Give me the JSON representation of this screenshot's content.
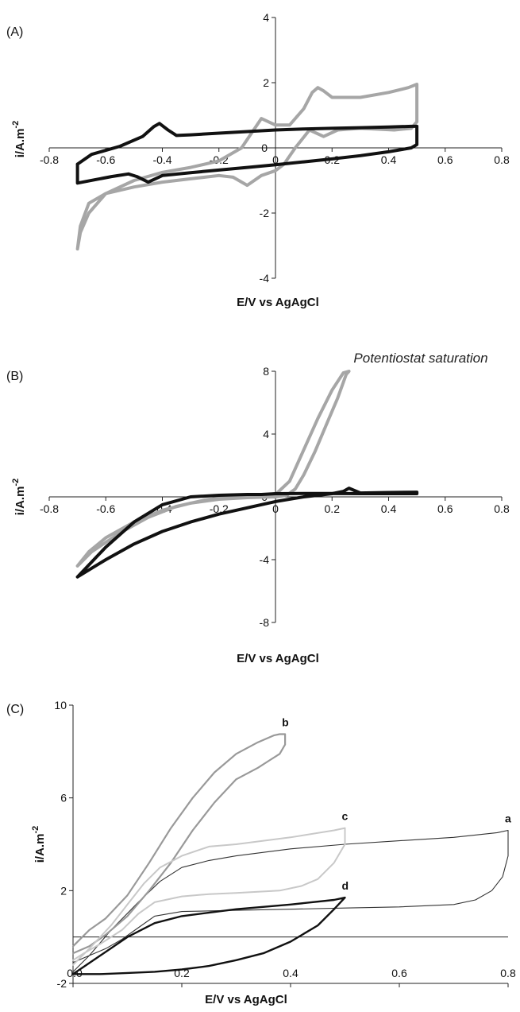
{
  "chart_data": [
    {
      "panel": "(A)",
      "type": "line",
      "xlabel": "E/V vs AgAgCl",
      "ylabel_main": "i/A.m",
      "ylabel_sup": "-2",
      "xlim": [
        -0.8,
        0.8
      ],
      "ylim": [
        -4,
        4
      ],
      "xticks": [
        -0.8,
        -0.6,
        -0.4,
        -0.2,
        0,
        0.2,
        0.4,
        0.6,
        0.8
      ],
      "xtick_labels": [
        "-0.8",
        "-0.6",
        "-0.4",
        "-0.2",
        "0",
        "0.2",
        "0.4",
        "0.6",
        "0.8"
      ],
      "yticks": [
        -4,
        -2,
        0,
        2,
        4
      ],
      "ytick_labels": [
        "-4",
        "-2",
        "0",
        "2",
        "4"
      ],
      "grid": false,
      "series": [
        {
          "color": "#a6a6a6",
          "x": [
            -0.7,
            -0.69,
            -0.66,
            -0.6,
            -0.5,
            -0.4,
            -0.3,
            -0.2,
            -0.12,
            -0.05,
            0.0,
            0.05,
            0.1,
            0.13,
            0.15,
            0.17,
            0.2,
            0.3,
            0.4,
            0.47,
            0.5,
            0.5,
            0.48,
            0.42,
            0.3,
            0.22,
            0.17,
            0.12,
            0.07,
            0.03,
            0.0,
            -0.05,
            -0.1,
            -0.15,
            -0.2,
            -0.3,
            -0.4,
            -0.5,
            -0.6,
            -0.66,
            -0.69,
            -0.7
          ],
          "y": [
            -3.1,
            -2.6,
            -2.0,
            -1.4,
            -1.0,
            -0.75,
            -0.6,
            -0.4,
            0.0,
            0.9,
            0.7,
            0.7,
            1.2,
            1.7,
            1.85,
            1.75,
            1.55,
            1.55,
            1.7,
            1.85,
            1.95,
            0.8,
            0.6,
            0.55,
            0.6,
            0.55,
            0.35,
            0.55,
            0.0,
            -0.5,
            -0.7,
            -0.85,
            -1.15,
            -0.9,
            -0.85,
            -0.95,
            -1.05,
            -1.2,
            -1.4,
            -1.7,
            -2.4,
            -3.1
          ]
        },
        {
          "color": "#111111",
          "x": [
            -0.7,
            -0.65,
            -0.55,
            -0.47,
            -0.43,
            -0.41,
            -0.38,
            -0.35,
            -0.3,
            -0.2,
            -0.1,
            0.0,
            0.1,
            0.2,
            0.3,
            0.4,
            0.48,
            0.5,
            0.5,
            0.48,
            0.4,
            0.3,
            0.2,
            0.1,
            0.0,
            -0.1,
            -0.2,
            -0.3,
            -0.4,
            -0.43,
            -0.45,
            -0.49,
            -0.52,
            -0.58,
            -0.64,
            -0.7,
            -0.7
          ],
          "y": [
            -0.5,
            -0.2,
            0.05,
            0.35,
            0.65,
            0.75,
            0.55,
            0.38,
            0.4,
            0.45,
            0.5,
            0.55,
            0.58,
            0.6,
            0.62,
            0.64,
            0.66,
            0.66,
            0.1,
            0.0,
            -0.12,
            -0.24,
            -0.34,
            -0.43,
            -0.52,
            -0.6,
            -0.68,
            -0.76,
            -0.85,
            -0.97,
            -1.05,
            -0.88,
            -0.8,
            -0.88,
            -0.98,
            -1.08,
            -0.5
          ]
        }
      ]
    },
    {
      "panel": "(B)",
      "type": "line",
      "xlabel": "E/V vs AgAgCl",
      "ylabel_main": "i/A.m",
      "ylabel_sup": "-2",
      "annotation": "Potentiostat saturation",
      "xlim": [
        -0.8,
        0.8
      ],
      "ylim": [
        -8,
        8
      ],
      "xticks": [
        -0.8,
        -0.6,
        -0.4,
        -0.2,
        0,
        0.2,
        0.4,
        0.6,
        0.8
      ],
      "xtick_labels": [
        "-0.8",
        "-0.6",
        "-0.4",
        "-0.2",
        "0",
        "0.2",
        "0.4",
        "0.6",
        "0.8"
      ],
      "yticks": [
        -8,
        -4,
        0,
        4,
        8
      ],
      "ytick_labels": [
        "-8",
        "-4",
        "0",
        "4",
        "8"
      ],
      "grid": false,
      "series": [
        {
          "color": "#a6a6a6",
          "x": [
            -0.7,
            -0.65,
            -0.55,
            -0.45,
            -0.35,
            -0.25,
            -0.15,
            -0.05,
            0.0,
            0.05,
            0.1,
            0.15,
            0.2,
            0.24,
            0.26,
            0.25,
            0.22,
            0.18,
            0.14,
            0.1,
            0.07,
            0.04,
            0.0,
            -0.1,
            -0.2,
            -0.3,
            -0.4,
            -0.5,
            -0.6,
            -0.66,
            -0.7
          ],
          "y": [
            -4.4,
            -3.5,
            -2.3,
            -1.3,
            -0.6,
            -0.2,
            0.05,
            0.1,
            0.15,
            1.0,
            3.0,
            5.0,
            6.8,
            7.9,
            8.0,
            7.8,
            6.3,
            4.6,
            2.9,
            1.4,
            0.5,
            0.1,
            0.0,
            -0.05,
            -0.15,
            -0.4,
            -0.85,
            -1.6,
            -2.6,
            -3.5,
            -4.4
          ]
        },
        {
          "color": "#111111",
          "x": [
            -0.7,
            -0.6,
            -0.5,
            -0.4,
            -0.3,
            -0.2,
            -0.1,
            0.0,
            0.1,
            0.2,
            0.24,
            0.26,
            0.3,
            0.4,
            0.5,
            0.5,
            0.4,
            0.3,
            0.2,
            0.1,
            0.0,
            -0.05,
            -0.1,
            -0.2,
            -0.3,
            -0.4,
            -0.5,
            -0.6,
            -0.7
          ],
          "y": [
            -5.1,
            -4.0,
            -3.0,
            -2.2,
            -1.6,
            -1.1,
            -0.7,
            -0.3,
            0.0,
            0.2,
            0.35,
            0.55,
            0.25,
            0.28,
            0.3,
            0.2,
            0.2,
            0.2,
            0.22,
            0.22,
            0.2,
            0.15,
            0.15,
            0.1,
            0.0,
            -0.5,
            -1.6,
            -3.2,
            -5.1
          ]
        }
      ]
    },
    {
      "panel": "(C)",
      "type": "line",
      "xlabel": "E/V vs AgAgCl",
      "ylabel_main": "i/A.m",
      "ylabel_sup": "-2",
      "xlim": [
        0,
        0.8
      ],
      "ylim": [
        -2,
        10
      ],
      "xticks": [
        0,
        0.2,
        0.4,
        0.6,
        0.8
      ],
      "xtick_labels": [
        "0.0",
        "0.2",
        "0.4",
        "0.6",
        "0.8"
      ],
      "yticks": [
        -2,
        2,
        6,
        10
      ],
      "ytick_labels": [
        "-2",
        "2",
        "6",
        "10"
      ],
      "grid": false,
      "series": [
        {
          "name": "a",
          "color": "#333333",
          "width": 1.1,
          "x": [
            0.0,
            0.03,
            0.07,
            0.12,
            0.16,
            0.2,
            0.25,
            0.3,
            0.4,
            0.5,
            0.6,
            0.7,
            0.78,
            0.8,
            0.8,
            0.79,
            0.77,
            0.74,
            0.7,
            0.65,
            0.6,
            0.5,
            0.4,
            0.3,
            0.2,
            0.15,
            0.12,
            0.09,
            0.06,
            0.03,
            0.0
          ],
          "y": [
            -1.5,
            -0.8,
            0.3,
            1.5,
            2.4,
            3.0,
            3.3,
            3.5,
            3.8,
            4.0,
            4.15,
            4.3,
            4.5,
            4.6,
            3.5,
            2.6,
            2.0,
            1.6,
            1.4,
            1.35,
            1.3,
            1.25,
            1.2,
            1.15,
            1.1,
            0.9,
            0.4,
            -0.1,
            -0.5,
            -0.8,
            -1.1
          ]
        },
        {
          "name": "b",
          "color": "#999999",
          "width": 2.2,
          "x": [
            0.0,
            0.03,
            0.06,
            0.1,
            0.14,
            0.18,
            0.22,
            0.26,
            0.3,
            0.34,
            0.37,
            0.38,
            0.39,
            0.39,
            0.38,
            0.36,
            0.34,
            0.3,
            0.26,
            0.22,
            0.18,
            0.14,
            0.1,
            0.06,
            0.03,
            0.0
          ],
          "y": [
            -0.4,
            0.3,
            0.8,
            1.8,
            3.2,
            4.7,
            6.0,
            7.1,
            7.9,
            8.4,
            8.7,
            8.75,
            8.75,
            8.3,
            7.9,
            7.6,
            7.3,
            6.8,
            5.8,
            4.6,
            3.2,
            2.0,
            0.9,
            0.1,
            -0.4,
            -0.7
          ]
        },
        {
          "name": "c",
          "color": "#c8c8c8",
          "width": 2.0,
          "x": [
            0.0,
            0.03,
            0.07,
            0.1,
            0.13,
            0.16,
            0.2,
            0.25,
            0.3,
            0.4,
            0.48,
            0.5,
            0.5,
            0.48,
            0.45,
            0.42,
            0.38,
            0.34,
            0.3,
            0.25,
            0.2,
            0.15,
            0.12,
            0.09,
            0.05,
            0.02,
            0.0
          ],
          "y": [
            -1.2,
            -0.5,
            0.5,
            1.4,
            2.3,
            3.0,
            3.5,
            3.9,
            4.0,
            4.3,
            4.6,
            4.7,
            4.0,
            3.2,
            2.5,
            2.2,
            2.0,
            1.95,
            1.9,
            1.85,
            1.75,
            1.5,
            1.0,
            0.3,
            -0.3,
            -0.7,
            -1.0
          ]
        },
        {
          "name": "d",
          "color": "#111111",
          "width": 2.4,
          "x": [
            0.0,
            0.05,
            0.1,
            0.15,
            0.2,
            0.3,
            0.4,
            0.48,
            0.5,
            0.48,
            0.45,
            0.4,
            0.35,
            0.3,
            0.25,
            0.2,
            0.15,
            0.1,
            0.05,
            0.0
          ],
          "y": [
            -1.6,
            -0.8,
            0.0,
            0.6,
            0.9,
            1.2,
            1.4,
            1.6,
            1.7,
            1.2,
            0.5,
            -0.2,
            -0.7,
            -1.0,
            -1.25,
            -1.4,
            -1.5,
            -1.55,
            -1.6,
            -1.6
          ]
        }
      ]
    }
  ]
}
